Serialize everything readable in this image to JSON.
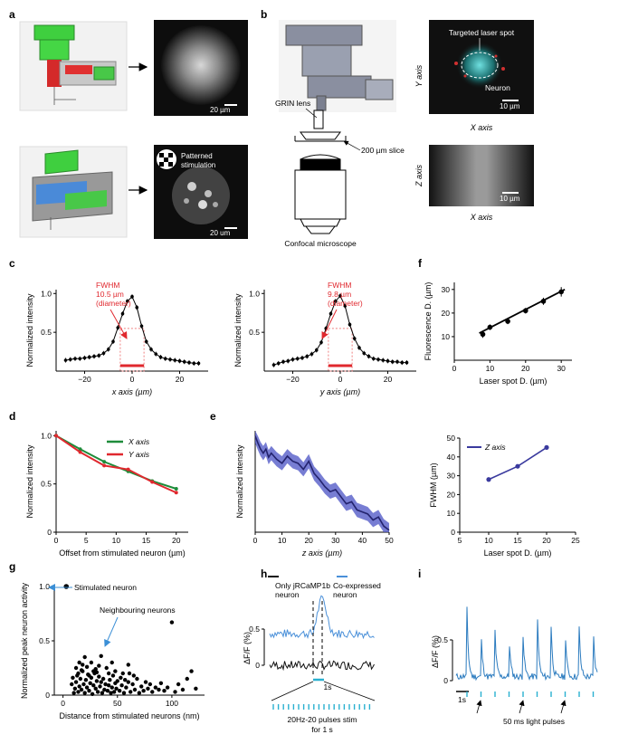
{
  "panel_letters": [
    "a",
    "b",
    "c",
    "d",
    "e",
    "f",
    "g",
    "h",
    "i"
  ],
  "panel_a": {
    "scale_top": "20 µm",
    "scale_bottom": "20 um",
    "patterned_label_1": "Patterned",
    "patterned_label_2": "stimulation"
  },
  "panel_b": {
    "grin_label": "GRIN lens",
    "slice_label": "200 µm slice",
    "microscope_label": "Confocal microscope",
    "y_axis_label": "Y axis",
    "x_axis_label_top": "X axis",
    "targeted_label": "Targeted laser spot",
    "neuron_label": "Neuron",
    "scale_xy": "10 µm",
    "z_axis_label": "Z axis",
    "x_axis_label_bottom": "X axis",
    "scale_xz": "10 µm"
  },
  "annotations": {
    "c1_fwhm": [
      "FWHM",
      "10.5 µm",
      "(diameter)"
    ],
    "c2_fwhm": [
      "FWHM",
      "9.8 µm",
      "(diameter)"
    ],
    "g_stimulated": "Stimulated neuron",
    "g_neighbouring": "Neighbouring neurons",
    "h_legend_black": [
      "Only jRCaMP1b",
      "neuron"
    ],
    "h_legend_blue": [
      "Co-expressed",
      "neuron"
    ],
    "h_scale": "1s",
    "h_stim": [
      "20Hz-20 pulses stim",
      "for 1 s"
    ],
    "i_scale": "1s",
    "i_pulses": "50 ms light pulses"
  },
  "chart_data": [
    {
      "id": "c1",
      "type": "line",
      "xlabel": "x axis (µm)",
      "ylabel": "Normalized intensity",
      "xlim": [
        -32,
        32
      ],
      "ylim": [
        0,
        1.05
      ],
      "xticks": [
        -20,
        0,
        20
      ],
      "yticks": [
        0.5,
        1.0
      ],
      "xtick_labels": [
        "−20",
        "0",
        "20"
      ],
      "ytick_labels": [
        "0.5",
        "1.0"
      ],
      "x": [
        -28,
        -26,
        -24,
        -22,
        -20,
        -18,
        -16,
        -14,
        -12,
        -10,
        -8,
        -6,
        -4,
        -2,
        0,
        2,
        4,
        6,
        8,
        10,
        12,
        14,
        16,
        18,
        20,
        22,
        24,
        26,
        28
      ],
      "y": [
        0.14,
        0.15,
        0.16,
        0.16,
        0.17,
        0.18,
        0.19,
        0.2,
        0.23,
        0.28,
        0.38,
        0.56,
        0.74,
        0.9,
        0.96,
        0.82,
        0.58,
        0.38,
        0.28,
        0.22,
        0.18,
        0.16,
        0.15,
        0.14,
        0.13,
        0.12,
        0.11,
        0.1,
        0.1
      ],
      "fwhm_range": [
        -5,
        5
      ]
    },
    {
      "id": "c2",
      "type": "line",
      "xlabel": "y axis (µm)",
      "ylabel": "Normalized intensity",
      "xlim": [
        -32,
        32
      ],
      "ylim": [
        0,
        1.05
      ],
      "xticks": [
        -20,
        0,
        20
      ],
      "yticks": [
        0.5,
        1.0
      ],
      "xtick_labels": [
        "−20",
        "0",
        "20"
      ],
      "ytick_labels": [
        "0.5",
        "1.0"
      ],
      "x": [
        -28,
        -26,
        -24,
        -22,
        -20,
        -18,
        -16,
        -14,
        -12,
        -10,
        -8,
        -6,
        -4,
        -2,
        0,
        2,
        4,
        6,
        8,
        10,
        12,
        14,
        16,
        18,
        20,
        22,
        24,
        26,
        28
      ],
      "y": [
        0.08,
        0.1,
        0.12,
        0.13,
        0.15,
        0.16,
        0.17,
        0.19,
        0.22,
        0.27,
        0.37,
        0.55,
        0.74,
        0.9,
        0.97,
        0.84,
        0.6,
        0.42,
        0.3,
        0.23,
        0.19,
        0.16,
        0.15,
        0.14,
        0.13,
        0.12,
        0.12,
        0.11,
        0.11
      ],
      "fwhm_range": [
        -5,
        5
      ]
    },
    {
      "id": "f1",
      "type": "line",
      "xlabel": "Laser spot D. (µm)",
      "ylabel": "Fluorescence D. (µm)",
      "xlim": [
        0,
        33
      ],
      "ylim": [
        0,
        33
      ],
      "xticks": [
        0,
        10,
        20,
        30
      ],
      "yticks": [
        10,
        20,
        30
      ],
      "xtick_labels": [
        "0",
        "10",
        "20",
        "30"
      ],
      "ytick_labels": [
        "10",
        "20",
        "30"
      ],
      "x": [
        8,
        10,
        15,
        20,
        25,
        30
      ],
      "y": [
        11,
        14,
        16.5,
        21,
        25,
        29
      ],
      "err": [
        1.5,
        1.2,
        1.2,
        1.2,
        1.5,
        2
      ],
      "fit": [
        [
          7,
          11.5
        ],
        [
          31,
          30
        ]
      ]
    },
    {
      "id": "d",
      "type": "line",
      "xlabel": "Offset from stimulated neuron (µm)",
      "ylabel": "Normalized intensity",
      "xlim": [
        0,
        22
      ],
      "ylim": [
        0,
        1.05
      ],
      "xticks": [
        0,
        5,
        10,
        15,
        20
      ],
      "yticks": [
        0,
        0.5,
        1.0
      ],
      "xtick_labels": [
        "0",
        "5",
        "10",
        "15",
        "20"
      ],
      "ytick_labels": [
        "0",
        "0.5",
        "1.0"
      ],
      "series": [
        {
          "name": "X axis",
          "color": "#1e8c3a",
          "x": [
            0,
            4,
            8,
            12,
            16,
            20
          ],
          "y": [
            1.0,
            0.86,
            0.73,
            0.63,
            0.53,
            0.45
          ]
        },
        {
          "name": "Y axis",
          "color": "#e0282e",
          "x": [
            0,
            4,
            8,
            12,
            16,
            20
          ],
          "y": [
            1.0,
            0.83,
            0.69,
            0.65,
            0.52,
            0.41
          ]
        }
      ]
    },
    {
      "id": "e",
      "type": "area",
      "xlabel": "z axis (µm)",
      "ylabel": "Normalized intensity",
      "xlim": [
        0,
        50
      ],
      "ylim": [
        0,
        1.0
      ],
      "xticks": [
        0,
        10,
        20,
        30,
        40,
        50
      ],
      "yticks": [],
      "xtick_labels": [
        "0",
        "10",
        "20",
        "30",
        "40",
        "50"
      ],
      "ytick_labels": [],
      "x": [
        0,
        1,
        2,
        3,
        4,
        5,
        6,
        8,
        10,
        12,
        14,
        16,
        18,
        20,
        22,
        24,
        26,
        28,
        30,
        32,
        34,
        36,
        38,
        40,
        42,
        44,
        46,
        48,
        50
      ],
      "y": [
        0.95,
        0.88,
        0.82,
        0.78,
        0.82,
        0.74,
        0.78,
        0.72,
        0.68,
        0.75,
        0.7,
        0.68,
        0.62,
        0.7,
        0.58,
        0.52,
        0.45,
        0.4,
        0.42,
        0.35,
        0.28,
        0.3,
        0.22,
        0.2,
        0.18,
        0.12,
        0.15,
        0.06,
        0.02
      ],
      "band": 0.07
    },
    {
      "id": "f2",
      "type": "line",
      "xlabel": "Laser spot D. (µm)",
      "ylabel": "FWHM (µm)",
      "xlim": [
        5,
        25
      ],
      "ylim": [
        0,
        50
      ],
      "xticks": [
        5,
        10,
        15,
        20,
        25
      ],
      "yticks": [
        0,
        10,
        20,
        30,
        40,
        50
      ],
      "xtick_labels": [
        "5",
        "10",
        "15",
        "20",
        "25"
      ],
      "ytick_labels": [
        "0",
        "10",
        "20",
        "30",
        "40",
        "50"
      ],
      "series": [
        {
          "name": "Z axis",
          "color": "#3a3a9e",
          "x": [
            10,
            15,
            20
          ],
          "y": [
            28,
            35,
            45
          ]
        }
      ]
    },
    {
      "id": "g",
      "type": "scatter",
      "xlabel": "Distance from stimulated neurons (nm)",
      "ylabel": "Normalized peak neuron activity",
      "xlim": [
        -8,
        130
      ],
      "ylim": [
        0,
        1.0
      ],
      "xticks": [
        0,
        50,
        100
      ],
      "yticks": [
        0,
        0.5,
        1.0
      ],
      "xtick_labels": [
        "0",
        "50",
        "100"
      ],
      "ytick_labels": [
        "0",
        "0.5",
        "1.0"
      ],
      "stimulated": [
        3,
        1.0
      ],
      "points": [
        [
          10,
          0.02
        ],
        [
          11,
          0.06
        ],
        [
          12,
          0.12
        ],
        [
          13,
          0.18
        ],
        [
          14,
          0.03
        ],
        [
          15,
          0.08
        ],
        [
          16,
          0.15
        ],
        [
          17,
          0.05
        ],
        [
          18,
          0.22
        ],
        [
          19,
          0.1
        ],
        [
          20,
          0.02
        ],
        [
          21,
          0.14
        ],
        [
          22,
          0.07
        ],
        [
          23,
          0.19
        ],
        [
          24,
          0.04
        ],
        [
          25,
          0.11
        ],
        [
          26,
          0.16
        ],
        [
          27,
          0.01
        ],
        [
          28,
          0.09
        ],
        [
          29,
          0.2
        ],
        [
          30,
          0.06
        ],
        [
          31,
          0.13
        ],
        [
          32,
          0.03
        ],
        [
          33,
          0.17
        ],
        [
          34,
          0.08
        ],
        [
          35,
          0.12
        ],
        [
          36,
          0.02
        ],
        [
          37,
          0.15
        ],
        [
          38,
          0.05
        ],
        [
          39,
          0.1
        ],
        [
          40,
          0.25
        ],
        [
          41,
          0.04
        ],
        [
          42,
          0.09
        ],
        [
          43,
          0.14
        ],
        [
          44,
          0.02
        ],
        [
          45,
          0.07
        ],
        [
          46,
          0.18
        ],
        [
          47,
          0.03
        ],
        [
          48,
          0.11
        ],
        [
          49,
          0.06
        ],
        [
          50,
          0.13
        ],
        [
          52,
          0.04
        ],
        [
          54,
          0.09
        ],
        [
          55,
          0.2
        ],
        [
          56,
          0.02
        ],
        [
          58,
          0.07
        ],
        [
          60,
          0.12
        ],
        [
          62,
          0.03
        ],
        [
          64,
          0.1
        ],
        [
          66,
          0.05
        ],
        [
          68,
          0.15
        ],
        [
          70,
          0.02
        ],
        [
          72,
          0.08
        ],
        [
          74,
          0.04
        ],
        [
          76,
          0.12
        ],
        [
          78,
          0.06
        ],
        [
          80,
          0.1
        ],
        [
          82,
          0.03
        ],
        [
          85,
          0.07
        ],
        [
          88,
          0.05
        ],
        [
          90,
          0.11
        ],
        [
          93,
          0.04
        ],
        [
          96,
          0.07
        ],
        [
          100,
          0.67
        ],
        [
          103,
          0.03
        ],
        [
          106,
          0.1
        ],
        [
          110,
          0.05
        ],
        [
          114,
          0.15
        ],
        [
          118,
          0.22
        ],
        [
          122,
          0.06
        ],
        [
          12,
          0.25
        ],
        [
          15,
          0.3
        ],
        [
          18,
          0.28
        ],
        [
          22,
          0.26
        ],
        [
          26,
          0.3
        ],
        [
          30,
          0.24
        ],
        [
          35,
          0.36
        ],
        [
          45,
          0.3
        ],
        [
          60,
          0.28
        ],
        [
          20,
          0.35
        ],
        [
          28,
          0.22
        ],
        [
          33,
          0.27
        ],
        [
          8,
          0.1
        ],
        [
          9,
          0.16
        ],
        [
          14,
          0.2
        ],
        [
          17,
          0.23
        ],
        [
          24,
          0.18
        ],
        [
          31,
          0.21
        ],
        [
          42,
          0.2
        ],
        [
          48,
          0.22
        ],
        [
          53,
          0.16
        ],
        [
          57,
          0.14
        ],
        [
          61,
          0.2
        ],
        [
          65,
          0.18
        ]
      ]
    },
    {
      "id": "h",
      "type": "line",
      "xlabel": "",
      "ylabel": "ΔF/F (%)",
      "yticks": [
        0,
        0.5
      ],
      "ytick_labels": [
        "0",
        "0.5"
      ],
      "series": [
        {
          "name": "Only jRCaMP1b neuron",
          "color": "#111111"
        },
        {
          "name": "Co-expressed neuron",
          "color": "#4a90d9"
        }
      ],
      "stim_pulses": 20
    },
    {
      "id": "i",
      "type": "line",
      "xlabel": "",
      "ylabel": "ΔF/F (%)",
      "yticks": [
        0,
        0.5
      ],
      "ytick_labels": [
        "0",
        "0.5"
      ],
      "series": [
        {
          "name": "Co-expressed neuron",
          "color": "#2b7bbf"
        }
      ],
      "peak_heights": [
        0.82,
        0.6,
        0.56,
        0.54,
        0.52,
        0.92,
        0.62,
        0.62,
        0.6,
        0.64
      ],
      "pulses": 10
    }
  ]
}
